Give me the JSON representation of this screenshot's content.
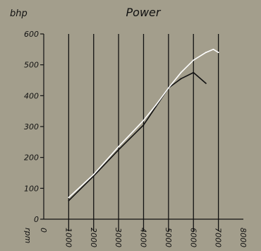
{
  "chart_data": {
    "type": "line",
    "title": "Power",
    "ylabel": "bhp",
    "xlabel": "rpm",
    "xlim": [
      0,
      8000
    ],
    "ylim": [
      0,
      600
    ],
    "x_ticks": [
      "0",
      "1000",
      "2000",
      "3000",
      "4000",
      "5000",
      "6000",
      "7000",
      "8000"
    ],
    "y_ticks": [
      "0",
      "100",
      "200",
      "300",
      "400",
      "500",
      "600"
    ],
    "vertical_gridlines_at": [
      1000,
      2000,
      3000,
      4000,
      5000,
      6000,
      7000
    ],
    "background": "#a39e8c",
    "series": [
      {
        "color": "#111111",
        "x": [
          1000,
          2000,
          3000,
          4000,
          4500,
          5000,
          5500,
          6000,
          6500
        ],
        "y": [
          60,
          140,
          225,
          305,
          365,
          425,
          455,
          475,
          440
        ]
      },
      {
        "color": "#ffffff",
        "x": [
          1000,
          2000,
          3000,
          4000,
          4500,
          5000,
          5500,
          6000,
          6500,
          6800,
          7000
        ],
        "y": [
          70,
          145,
          235,
          320,
          370,
          425,
          475,
          515,
          540,
          550,
          540
        ]
      }
    ]
  }
}
